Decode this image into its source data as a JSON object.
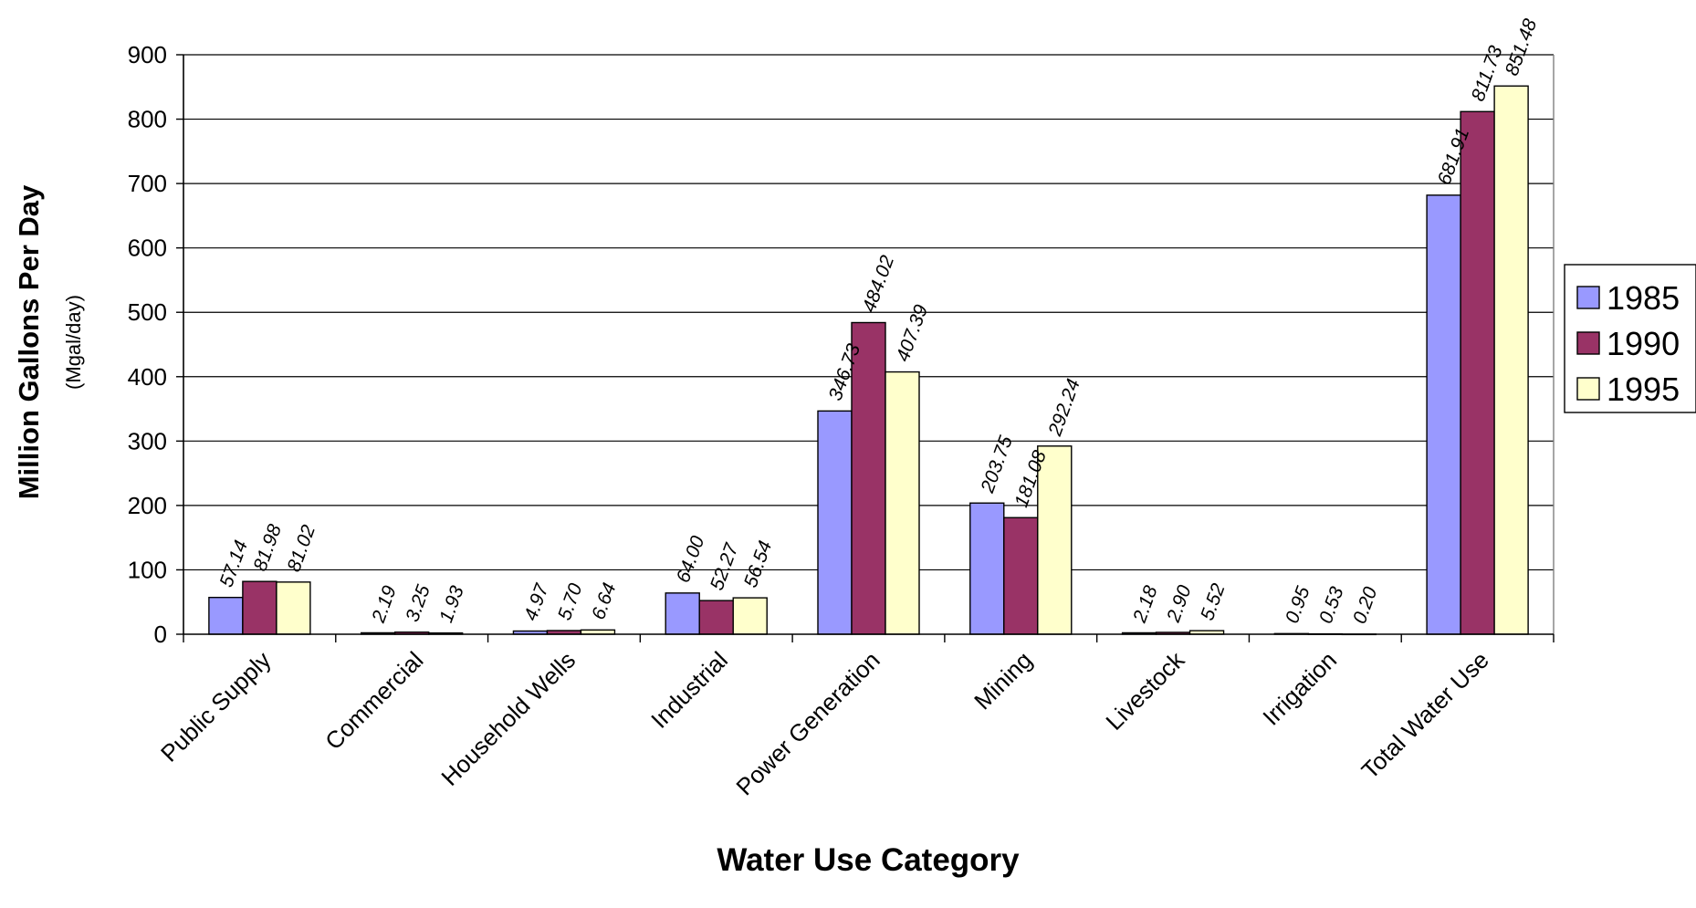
{
  "chart_data": {
    "type": "bar",
    "title": "",
    "xlabel": "Water Use Category",
    "ylabel": "Million Gallons Per Day",
    "ylabel_unit": "(Mgal/day)",
    "ylim": [
      0,
      900
    ],
    "yticks": [
      0,
      100,
      200,
      300,
      400,
      500,
      600,
      700,
      800,
      900
    ],
    "grid": true,
    "legend_position": "right",
    "categories": [
      "Public Supply",
      "Commercial",
      "Household Wells",
      "Industrial",
      "Power Generation",
      "Mining",
      "Livestock",
      "Irrigation",
      "Total Water Use"
    ],
    "series": [
      {
        "name": "1985",
        "color": "#9999ff",
        "values": [
          57.14,
          2.19,
          4.97,
          64.0,
          346.73,
          203.75,
          2.18,
          0.95,
          681.91
        ],
        "labels": [
          "57.14",
          "2.19",
          "4.97",
          "64.00",
          "346.73",
          "203.75",
          "2.18",
          "0.95",
          "681.91"
        ]
      },
      {
        "name": "1990",
        "color": "#993366",
        "values": [
          81.98,
          3.25,
          5.7,
          52.27,
          484.02,
          181.08,
          2.9,
          0.53,
          811.73
        ],
        "labels": [
          "81.98",
          "3.25",
          "5.70",
          "52.27",
          "484.02",
          "181.08",
          "2.90",
          "0.53",
          "811.73"
        ]
      },
      {
        "name": "1995",
        "color": "#ffffcc",
        "values": [
          81.02,
          1.93,
          6.64,
          56.54,
          407.39,
          292.24,
          5.52,
          0.2,
          851.48
        ],
        "labels": [
          "81.02",
          "1.93",
          "6.64",
          "56.54",
          "407.39",
          "292.24",
          "5.52",
          "0.20",
          "851.48"
        ]
      }
    ]
  }
}
